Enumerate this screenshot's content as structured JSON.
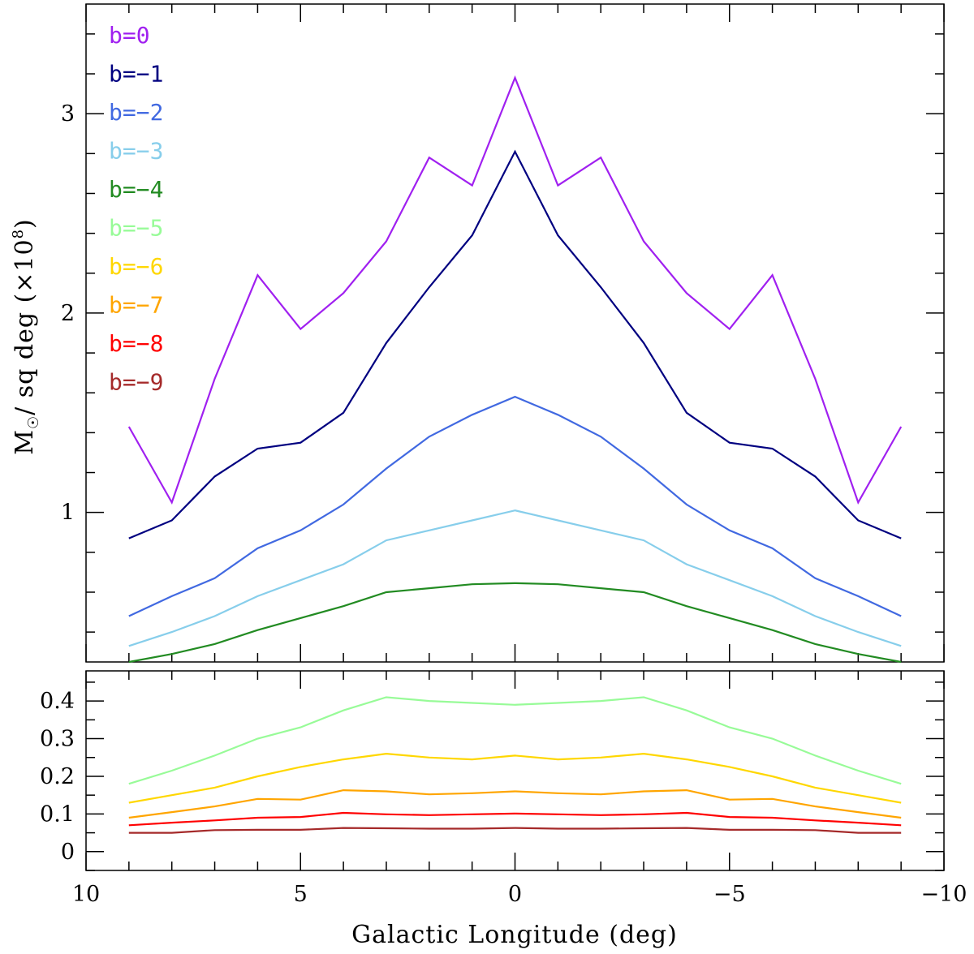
{
  "chart_data": [
    {
      "panel": "top",
      "type": "line",
      "ylabel": "M☉/ sq deg (×10⁸)",
      "ylabel_parts": {
        "main": "M",
        "sub": "☉",
        "rest": "/ sq deg (×10",
        "sup": "8",
        "close": ")"
      },
      "xlim": [
        10,
        -10
      ],
      "ylim": [
        0.25,
        3.55
      ],
      "y_ticks": [
        1,
        2,
        3
      ],
      "y_tick_labels": [
        "1",
        "2",
        "3"
      ],
      "x": [
        9,
        8,
        7,
        6,
        5,
        4,
        3,
        2,
        1,
        0,
        -1,
        -2,
        -3,
        -4,
        -5,
        -6,
        -7,
        -8,
        -9
      ],
      "series": [
        {
          "name": "b=0",
          "color": "#a020f0",
          "values": [
            1.43,
            1.05,
            1.67,
            2.19,
            1.92,
            2.1,
            2.36,
            2.78,
            2.64,
            3.18,
            2.64,
            2.78,
            2.36,
            2.1,
            1.92,
            2.19,
            1.67,
            1.05,
            1.43
          ]
        },
        {
          "name": "b=-1",
          "color": "#000080",
          "values": [
            0.87,
            0.96,
            1.18,
            1.32,
            1.35,
            1.5,
            1.85,
            2.13,
            2.39,
            2.81,
            2.39,
            2.13,
            1.85,
            1.5,
            1.35,
            1.32,
            1.18,
            0.96,
            0.87
          ]
        },
        {
          "name": "b=-2",
          "color": "#4169e1",
          "values": [
            0.48,
            0.58,
            0.67,
            0.82,
            0.91,
            1.04,
            1.22,
            1.38,
            1.49,
            1.58,
            1.49,
            1.38,
            1.22,
            1.04,
            0.91,
            0.82,
            0.67,
            0.58,
            0.48
          ]
        },
        {
          "name": "b=-3",
          "color": "#87ceeb",
          "values": [
            0.33,
            0.4,
            0.48,
            0.58,
            0.66,
            0.74,
            0.86,
            0.91,
            0.96,
            1.01,
            0.96,
            0.91,
            0.86,
            0.74,
            0.66,
            0.58,
            0.48,
            0.4,
            0.33
          ]
        },
        {
          "name": "b=-4",
          "color": "#228b22",
          "values": [
            0.25,
            0.29,
            0.34,
            0.41,
            0.47,
            0.53,
            0.6,
            0.62,
            0.64,
            0.645,
            0.64,
            0.62,
            0.6,
            0.53,
            0.47,
            0.41,
            0.34,
            0.29,
            0.25
          ]
        }
      ]
    },
    {
      "panel": "bottom",
      "type": "line",
      "xlabel": "Galactic Longitude (deg)",
      "xlim": [
        10,
        -10
      ],
      "ylim": [
        -0.05,
        0.48
      ],
      "x_ticks": [
        10,
        5,
        0,
        -5,
        -10
      ],
      "x_tick_labels": [
        "10",
        "5",
        "0",
        "−5",
        "−10"
      ],
      "y_ticks": [
        0,
        0.1,
        0.2,
        0.3,
        0.4
      ],
      "y_tick_labels": [
        "0",
        "0.1",
        "0.2",
        "0.3",
        "0.4"
      ],
      "x": [
        9,
        8,
        7,
        6,
        5,
        4,
        3,
        2,
        1,
        0,
        -1,
        -2,
        -3,
        -4,
        -5,
        -6,
        -7,
        -8,
        -9
      ],
      "series": [
        {
          "name": "b=-5",
          "color": "#98fb98",
          "values": [
            0.18,
            0.215,
            0.255,
            0.3,
            0.33,
            0.375,
            0.41,
            0.4,
            0.395,
            0.39,
            0.395,
            0.4,
            0.41,
            0.375,
            0.33,
            0.3,
            0.255,
            0.215,
            0.18
          ]
        },
        {
          "name": "b=-6",
          "color": "#ffd700",
          "values": [
            0.13,
            0.15,
            0.17,
            0.2,
            0.225,
            0.245,
            0.26,
            0.25,
            0.245,
            0.255,
            0.245,
            0.25,
            0.26,
            0.245,
            0.225,
            0.2,
            0.17,
            0.15,
            0.13
          ]
        },
        {
          "name": "b=-7",
          "color": "#ffa500",
          "values": [
            0.09,
            0.105,
            0.12,
            0.14,
            0.138,
            0.163,
            0.16,
            0.152,
            0.155,
            0.16,
            0.155,
            0.152,
            0.16,
            0.163,
            0.138,
            0.14,
            0.12,
            0.105,
            0.09
          ]
        },
        {
          "name": "b=-8",
          "color": "#ff0000",
          "values": [
            0.07,
            0.077,
            0.083,
            0.09,
            0.092,
            0.103,
            0.099,
            0.097,
            0.099,
            0.101,
            0.099,
            0.097,
            0.099,
            0.103,
            0.092,
            0.09,
            0.083,
            0.077,
            0.07
          ]
        },
        {
          "name": "b=-9",
          "color": "#a52a2a",
          "values": [
            0.05,
            0.05,
            0.057,
            0.058,
            0.058,
            0.063,
            0.062,
            0.061,
            0.061,
            0.063,
            0.061,
            0.061,
            0.062,
            0.063,
            0.058,
            0.058,
            0.057,
            0.05,
            0.05
          ]
        }
      ]
    }
  ],
  "legend": {
    "placement": "top-left",
    "entries": [
      {
        "label": "b=0",
        "color": "#a020f0"
      },
      {
        "label": "b=−1",
        "color": "#000080"
      },
      {
        "label": "b=−2",
        "color": "#4169e1"
      },
      {
        "label": "b=−3",
        "color": "#87ceeb"
      },
      {
        "label": "b=−4",
        "color": "#228b22"
      },
      {
        "label": "b=−5",
        "color": "#98fb98"
      },
      {
        "label": "b=−6",
        "color": "#ffd700"
      },
      {
        "label": "b=−7",
        "color": "#ffa500"
      },
      {
        "label": "b=−8",
        "color": "#ff0000"
      },
      {
        "label": "b=−9",
        "color": "#a52a2a"
      }
    ]
  }
}
